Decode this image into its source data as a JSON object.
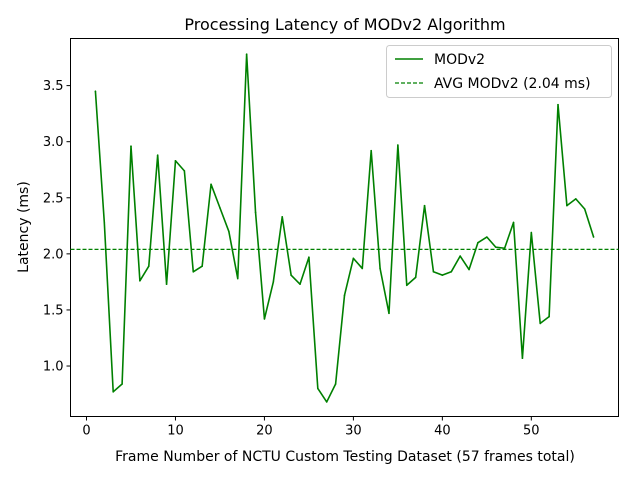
{
  "chart_data": {
    "type": "line",
    "title": "Processing Latency of MODv2 Algorithm",
    "xlabel": "Frame Number of NCTU Custom Testing Dataset (57 frames total)",
    "ylabel": "Latency (ms)",
    "xlim": [
      -1.8,
      59.8
    ],
    "ylim": [
      0.55,
      3.92
    ],
    "x_ticks": [
      0,
      10,
      20,
      30,
      40,
      50
    ],
    "y_ticks": [
      1.0,
      1.5,
      2.0,
      2.5,
      3.0,
      3.5
    ],
    "x_tick_labels": [
      "0",
      "10",
      "20",
      "30",
      "40",
      "50"
    ],
    "y_tick_labels": [
      "1.0",
      "1.5",
      "2.0",
      "2.5",
      "3.0",
      "3.5"
    ],
    "grid": false,
    "legend_position": "top-right",
    "series": [
      {
        "name": "MODv2",
        "color": "#008000",
        "style": "solid",
        "x": [
          1,
          2,
          3,
          4,
          5,
          6,
          7,
          8,
          9,
          10,
          11,
          12,
          13,
          14,
          15,
          16,
          17,
          18,
          19,
          20,
          21,
          22,
          23,
          24,
          25,
          26,
          27,
          28,
          29,
          30,
          31,
          32,
          33,
          34,
          35,
          36,
          37,
          38,
          39,
          40,
          41,
          42,
          43,
          44,
          45,
          46,
          47,
          48,
          49,
          50,
          51,
          52,
          53,
          54,
          55,
          56,
          57
        ],
        "values": [
          3.45,
          2.28,
          0.77,
          0.84,
          2.96,
          1.76,
          1.89,
          2.88,
          1.73,
          2.83,
          2.74,
          1.84,
          1.89,
          2.62,
          2.41,
          2.2,
          1.78,
          3.78,
          2.37,
          1.42,
          1.75,
          2.33,
          1.81,
          1.73,
          1.97,
          0.8,
          0.68,
          0.84,
          1.63,
          1.96,
          1.87,
          2.92,
          1.87,
          1.47,
          2.97,
          1.72,
          1.79,
          2.43,
          1.84,
          1.81,
          1.84,
          1.98,
          1.86,
          2.1,
          2.15,
          2.06,
          2.05,
          2.28,
          1.07,
          2.19,
          1.38,
          1.44,
          3.33,
          2.43,
          2.49,
          2.4,
          2.15
        ]
      },
      {
        "name": "AVG MODv2 (2.04 ms)",
        "color": "#008000",
        "style": "dashed",
        "value": 2.04
      }
    ]
  }
}
